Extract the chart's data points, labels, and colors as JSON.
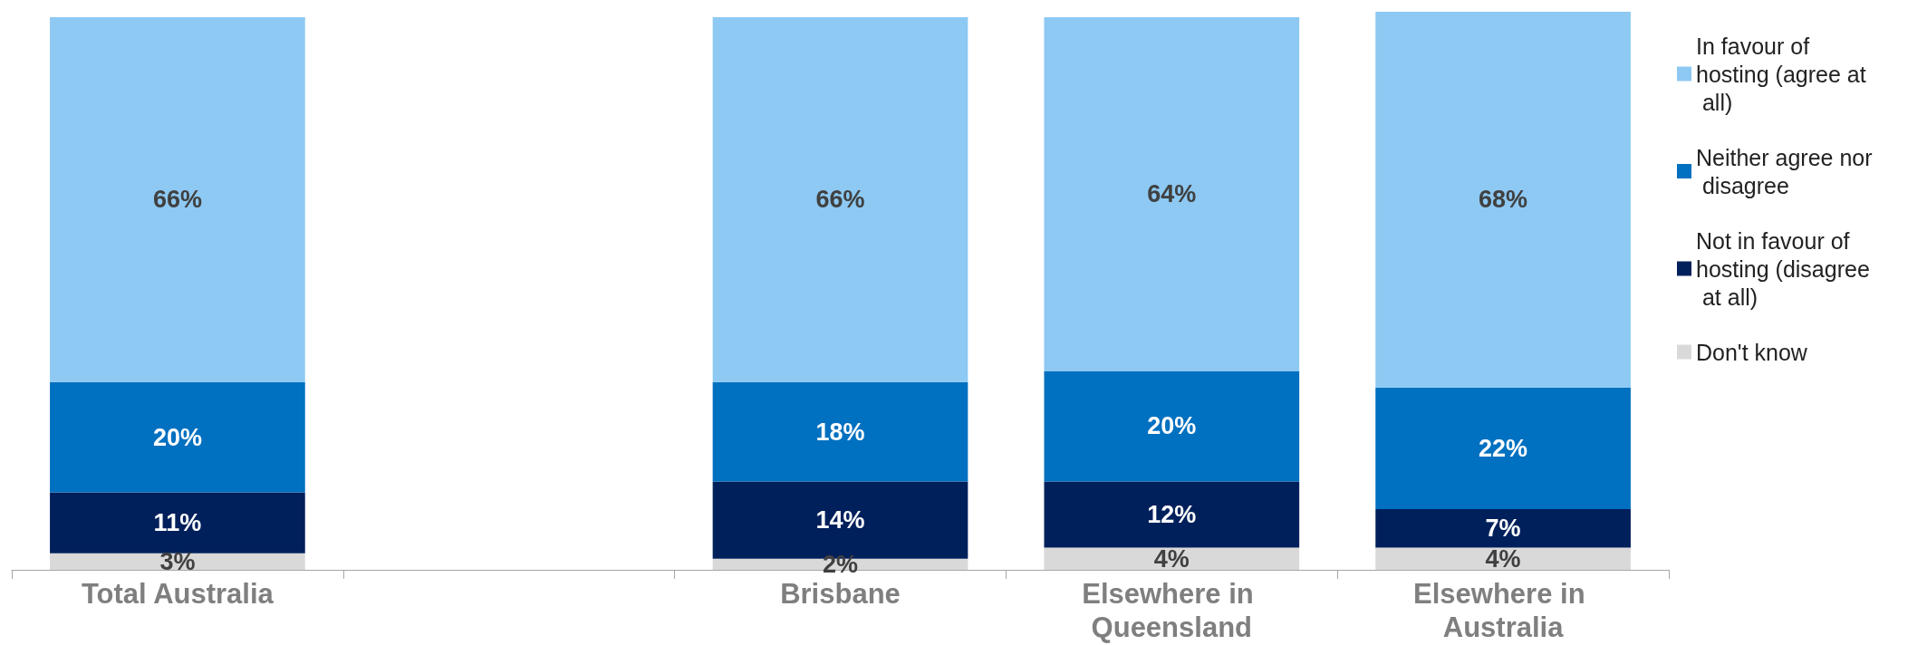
{
  "chart_data": {
    "type": "bar",
    "stacked": true,
    "legend": "right",
    "categories": [
      "Total Australia",
      null,
      "Brisbane",
      "Elsewhere in Queensland",
      "Elsewhere in Australia"
    ],
    "series": [
      {
        "name": "Don't know",
        "color": "#d9d9d9",
        "values": [
          3,
          null,
          2,
          4,
          4
        ],
        "value_labels": [
          "3%",
          null,
          "2%",
          "4%",
          "4%"
        ]
      },
      {
        "name": "Not in favour of hosting (disagree at all)",
        "color": "#00205b",
        "values": [
          11,
          null,
          14,
          12,
          7
        ],
        "value_labels": [
          "11%",
          null,
          "14%",
          "12%",
          "7%"
        ]
      },
      {
        "name": "Neither agree nor disagree",
        "color": "#0070c0",
        "values": [
          20,
          null,
          18,
          20,
          22
        ],
        "value_labels": [
          "20%",
          null,
          "18%",
          "20%",
          "22%"
        ]
      },
      {
        "name": "In favour of hosting (agree at all)",
        "color": "#8dc9f3",
        "values": [
          66,
          null,
          66,
          64,
          68
        ],
        "value_labels": [
          "66%",
          null,
          "66%",
          "64%",
          "68%"
        ]
      }
    ]
  }
}
